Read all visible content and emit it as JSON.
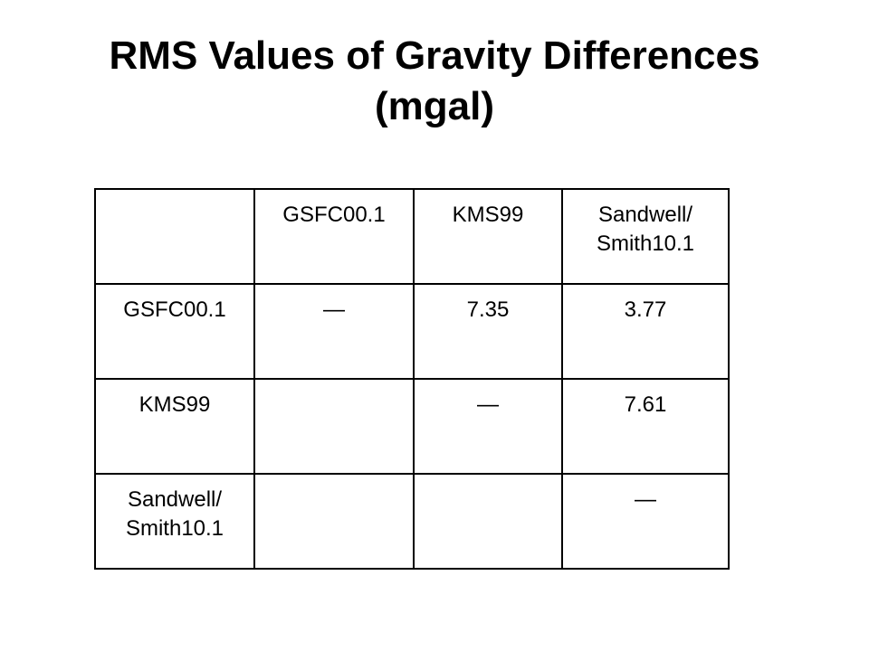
{
  "title": {
    "line1": "RMS Values of Gravity Differences",
    "line2": "(mgal)"
  },
  "table": {
    "header": {
      "corner": "",
      "col1": "GSFC00.1",
      "col2": "KMS99",
      "col3_line1": "Sandwell/",
      "col3_line2": "Smith10.1"
    },
    "rows": [
      {
        "label": "GSFC00.1",
        "c1": "—",
        "c2": "7.35",
        "c3": "3.77"
      },
      {
        "label": "KMS99",
        "c1": "",
        "c2": "—",
        "c3": "7.61"
      },
      {
        "label_line1": "Sandwell/",
        "label_line2": "Smith10.1",
        "c1": "",
        "c2": "",
        "c3": "—"
      }
    ]
  }
}
